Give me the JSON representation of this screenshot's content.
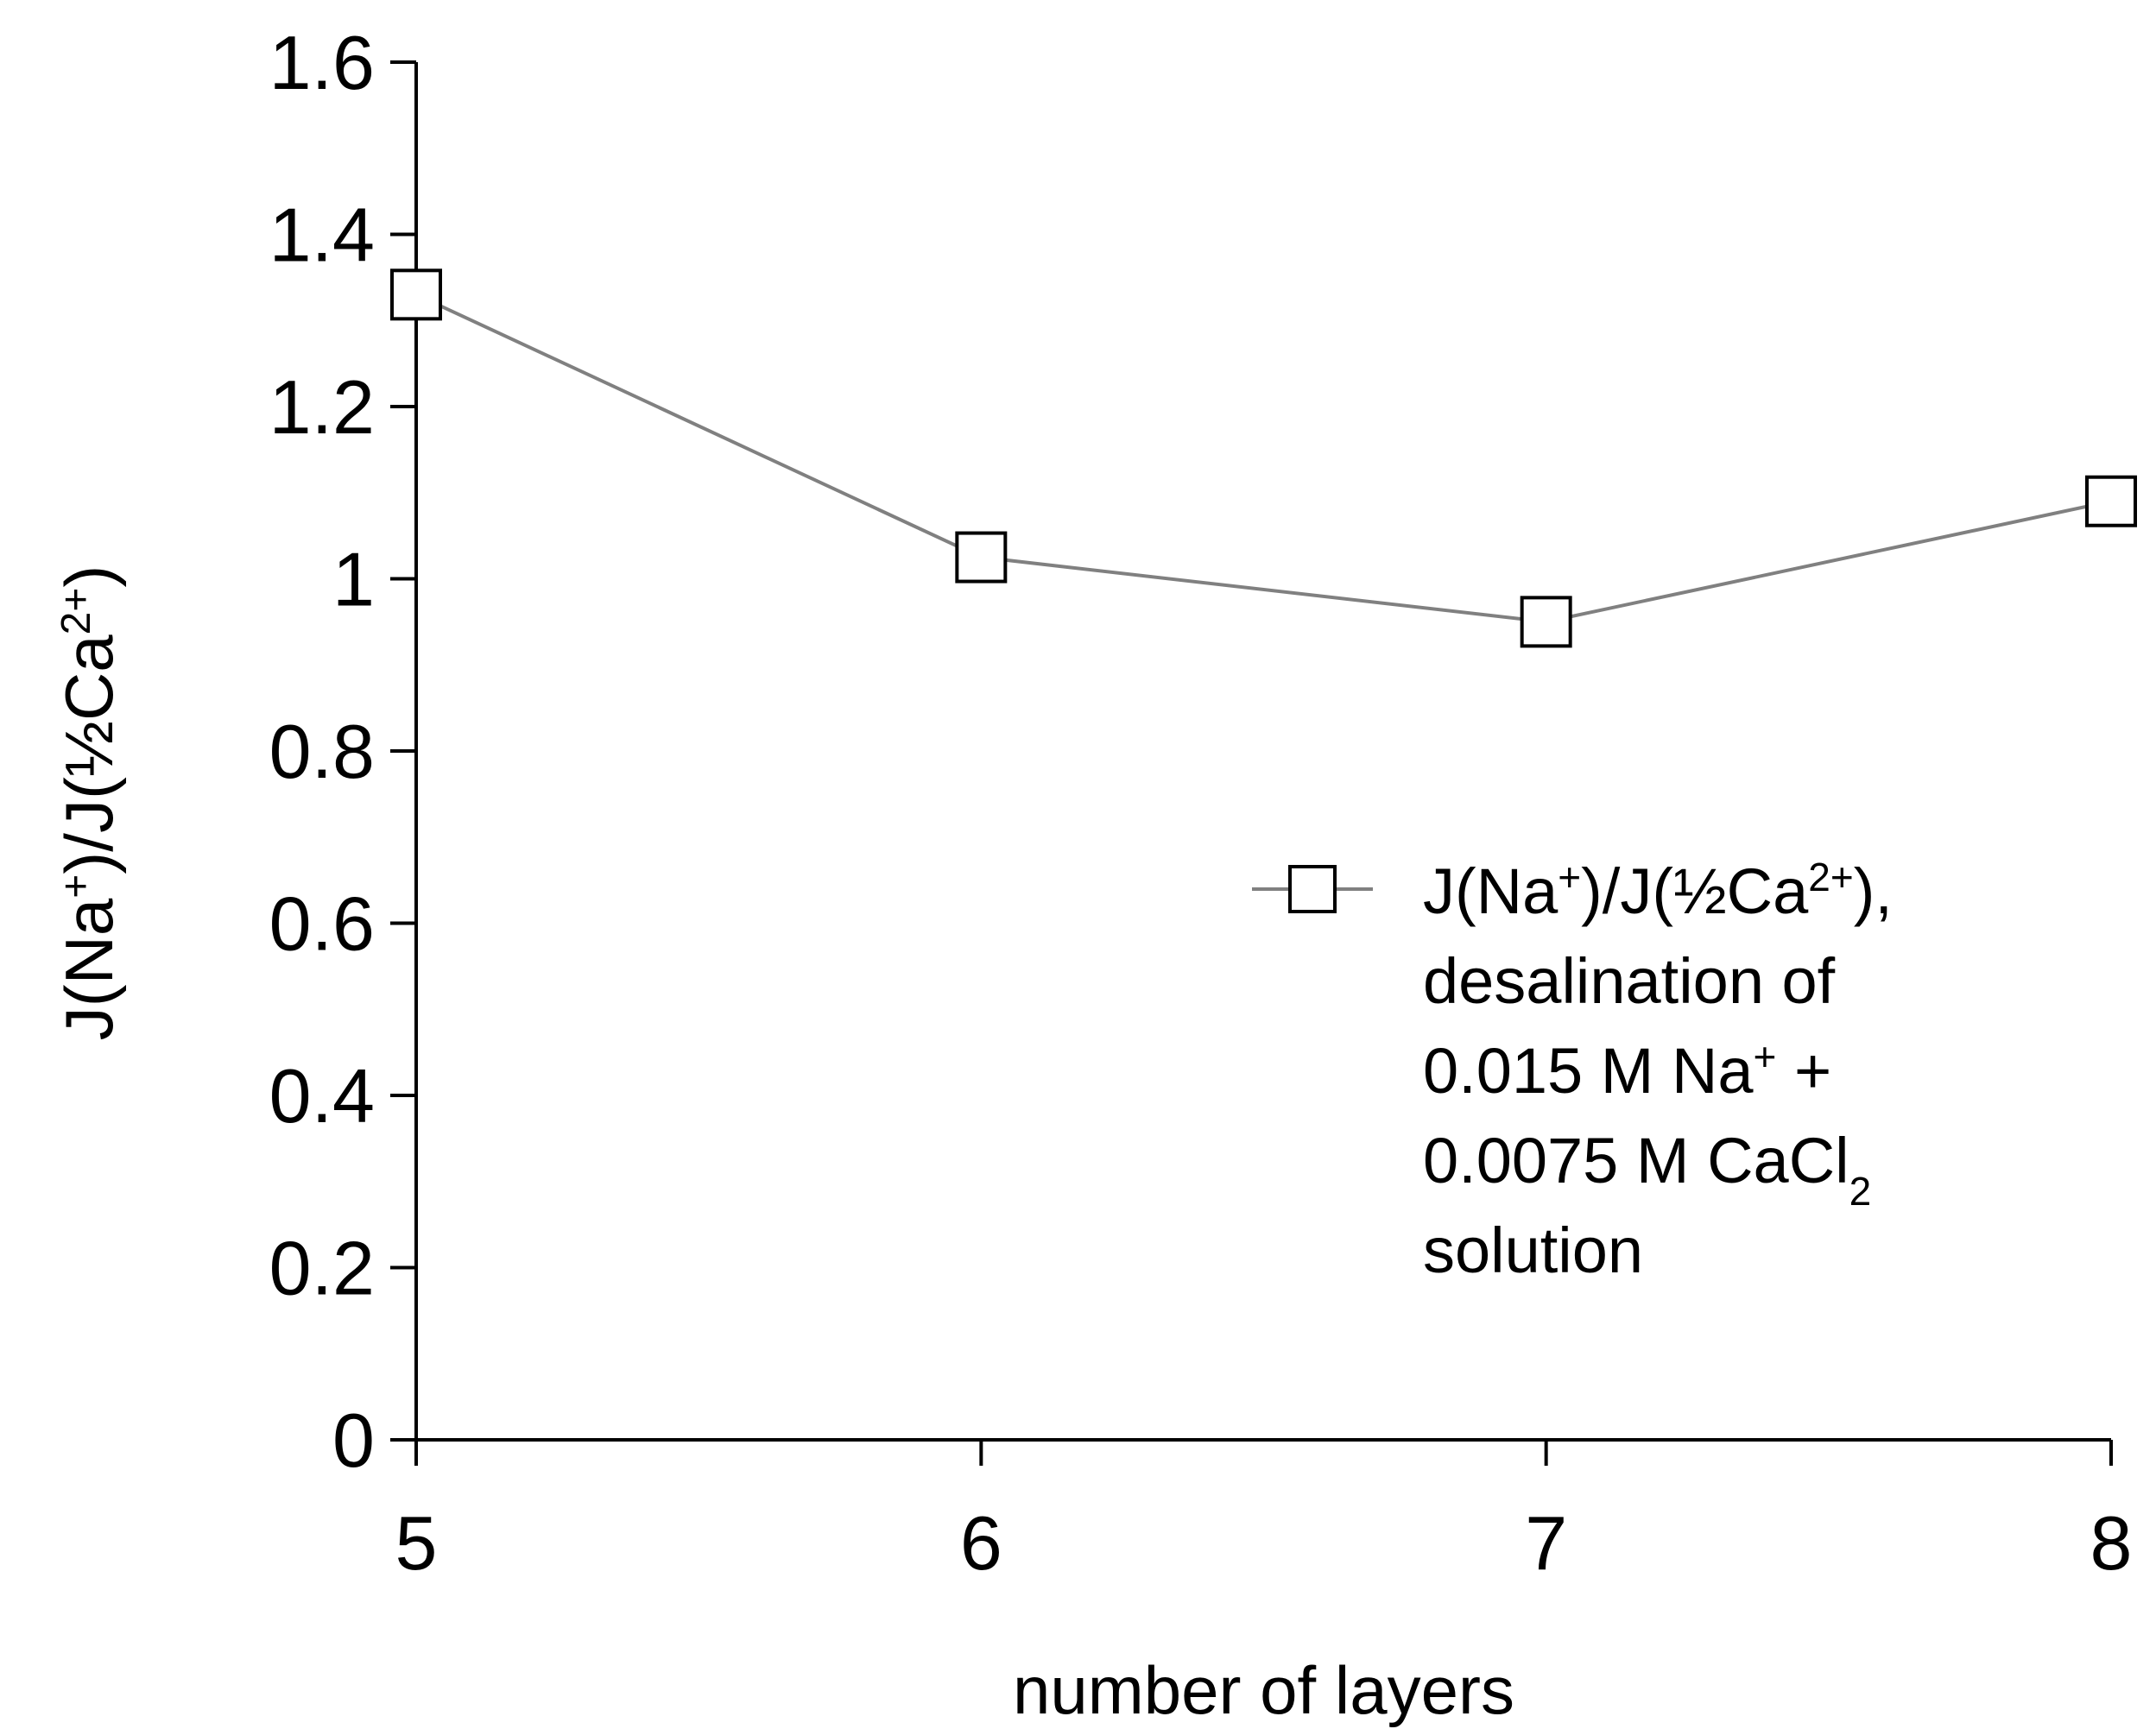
{
  "chart_data": {
    "type": "line",
    "x": [
      5,
      6,
      7,
      8
    ],
    "series": [
      {
        "values": [
          1.33,
          1.025,
          0.95,
          1.09
        ],
        "color": "#808080",
        "marker": "open-square",
        "marker_color": "#000000"
      }
    ],
    "xlabel": "number of layers",
    "ylabel": {
      "parts": [
        {
          "t": "J(Na"
        },
        {
          "t": "+",
          "sup": true
        },
        {
          "t": ")/J(½Ca"
        },
        {
          "t": "2+",
          "sup": true
        },
        {
          "t": ")"
        }
      ]
    },
    "xticks": [
      "5",
      "6",
      "7",
      "8"
    ],
    "yticks": [
      "0",
      "0.2",
      "0.4",
      "0.6",
      "0.8",
      "1",
      "1.2",
      "1.4",
      "1.6"
    ],
    "xlim": [
      5,
      8
    ],
    "ylim": [
      0,
      1.6
    ],
    "grid": false,
    "legend": {
      "position": "right",
      "lines": [
        [
          {
            "t": "J(Na"
          },
          {
            "t": "+",
            "sup": true
          },
          {
            "t": ")/J(½Ca"
          },
          {
            "t": "2+",
            "sup": true
          },
          {
            "t": "),"
          }
        ],
        [
          {
            "t": "desalination of"
          }
        ],
        [
          {
            "t": "0.015 M Na"
          },
          {
            "t": "+",
            "sup": true
          },
          {
            "t": " +"
          }
        ],
        [
          {
            "t": "0.0075 M CaCl"
          },
          {
            "t": "2",
            "sub": true
          }
        ],
        [
          {
            "t": "solution"
          }
        ]
      ]
    },
    "axis_color": "#000000"
  }
}
